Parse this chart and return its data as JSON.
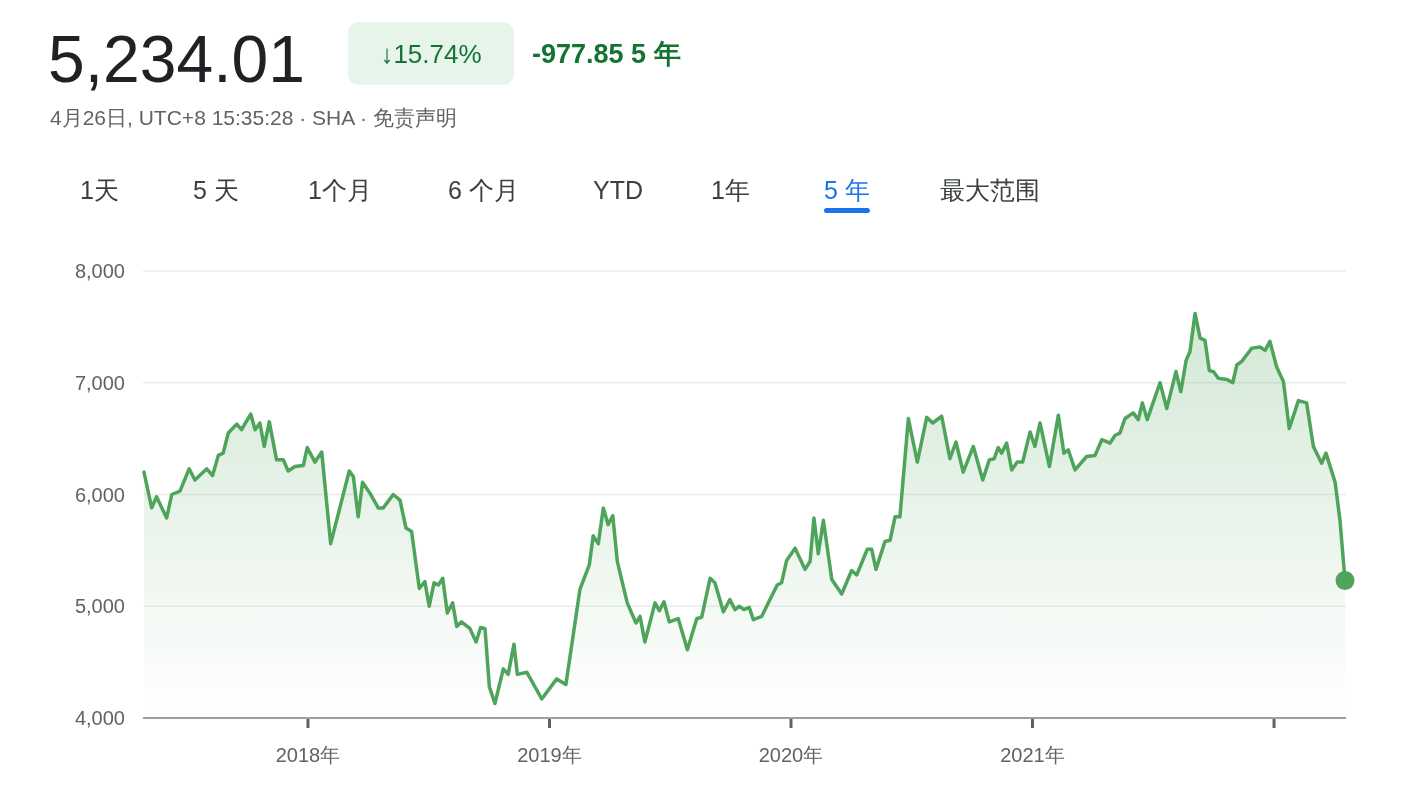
{
  "chart_data": {
    "type": "area",
    "title": "5,234.01",
    "subtitle": "4月26日, UTC+8 15:35:28 · SHA · 免责声明",
    "annotations": [
      "↓15.74%",
      "-977.85 5 年",
      "1天",
      "5 天",
      "1个月",
      "6 个月",
      "YTD",
      "1年",
      "5 年",
      "最大范围"
    ],
    "xlim": [
      2017.317,
      2022.298
    ],
    "xticks": [
      {
        "value": 2018,
        "label": "2018年"
      },
      {
        "value": 2019,
        "label": "2019年"
      },
      {
        "value": 2020,
        "label": "2020年"
      },
      {
        "value": 2021,
        "label": "2021年"
      },
      {
        "value": 2022,
        "label": null
      }
    ],
    "ylim": [
      4000,
      8000
    ],
    "yticks": [
      {
        "value": 4000,
        "label": "4,000"
      },
      {
        "value": 5000,
        "label": "5,000"
      },
      {
        "value": 6000,
        "label": "6,000"
      },
      {
        "value": 7000,
        "label": "7,000"
      },
      {
        "value": 8000,
        "label": "8,000"
      }
    ],
    "grid": "y",
    "series": [
      {
        "color": "#4ea45a",
        "x": [
          2017.321,
          2017.353,
          2017.373,
          2017.415,
          2017.436,
          2017.47,
          2017.508,
          2017.532,
          2017.581,
          2017.605,
          2017.629,
          2017.649,
          2017.67,
          2017.705,
          2017.725,
          2017.763,
          2017.781,
          2017.801,
          2017.819,
          2017.84,
          2017.87,
          2017.898,
          2017.918,
          2017.946,
          2017.981,
          2017.997,
          2018.029,
          2018.057,
          2018.094,
          2018.171,
          2018.188,
          2018.208,
          2018.226,
          2018.257,
          2018.291,
          2018.312,
          2018.353,
          2018.381,
          2018.406,
          2018.429,
          2018.461,
          2018.484,
          2018.502,
          2018.522,
          2018.54,
          2018.558,
          2018.577,
          2018.599,
          2018.616,
          2018.636,
          2018.671,
          2018.696,
          2018.715,
          2018.733,
          2018.751,
          2018.774,
          2018.809,
          2018.829,
          2018.853,
          2018.867,
          2018.906,
          2018.968,
          2019.03,
          2019.068,
          2019.126,
          2019.165,
          2019.181,
          2019.202,
          2019.223,
          2019.243,
          2019.262,
          2019.281,
          2019.322,
          2019.358,
          2019.375,
          2019.395,
          2019.437,
          2019.455,
          2019.474,
          2019.496,
          2019.533,
          2019.571,
          2019.61,
          2019.63,
          2019.665,
          2019.685,
          2019.72,
          2019.747,
          2019.768,
          2019.786,
          2019.805,
          2019.827,
          2019.844,
          2019.879,
          2019.913,
          2019.943,
          2019.961,
          2019.982,
          2020.017,
          2020.058,
          2020.079,
          2020.095,
          2020.113,
          2020.134,
          2020.169,
          2020.21,
          2020.251,
          2020.272,
          2020.316,
          2020.334,
          2020.352,
          2020.389,
          2020.41,
          2020.431,
          2020.451,
          2020.486,
          2020.523,
          2020.562,
          2020.587,
          2020.624,
          2020.658,
          2020.683,
          2020.713,
          2020.755,
          2020.794,
          2020.821,
          2020.841,
          2020.858,
          2020.872,
          2020.893,
          2020.914,
          2020.937,
          2020.959,
          2020.99,
          2021.01,
          2021.031,
          2021.07,
          2021.107,
          2021.13,
          2021.148,
          2021.176,
          2021.224,
          2021.259,
          2021.287,
          2021.321,
          2021.342,
          2021.362,
          2021.383,
          2021.417,
          2021.438,
          2021.455,
          2021.475,
          2021.528,
          2021.556,
          2021.594,
          2021.614,
          2021.636,
          2021.652,
          2021.673,
          2021.694,
          2021.714,
          2021.732,
          2021.749,
          2021.769,
          2021.804,
          2021.829,
          2021.846,
          2021.866,
          2021.908,
          2021.942,
          2021.963,
          2021.983,
          2022.011,
          2022.039,
          2022.063,
          2022.101,
          2022.135,
          2022.163,
          2022.197,
          2022.215,
          2022.253,
          2022.273,
          2022.294
        ],
        "values": [
          6200,
          5880,
          5980,
          5790,
          6000,
          6030,
          6230,
          6130,
          6230,
          6170,
          6350,
          6370,
          6550,
          6630,
          6580,
          6720,
          6580,
          6640,
          6430,
          6650,
          6310,
          6310,
          6210,
          6250,
          6260,
          6420,
          6290,
          6380,
          5560,
          6210,
          6160,
          5800,
          6110,
          6010,
          5880,
          5880,
          6000,
          5950,
          5700,
          5670,
          5160,
          5220,
          5000,
          5210,
          5190,
          5250,
          4940,
          5030,
          4820,
          4860,
          4800,
          4680,
          4810,
          4800,
          4280,
          4130,
          4440,
          4390,
          4660,
          4390,
          4410,
          4170,
          4350,
          4300,
          5150,
          5370,
          5630,
          5560,
          5880,
          5730,
          5810,
          5400,
          5030,
          4850,
          4910,
          4680,
          5030,
          4960,
          5040,
          4860,
          4890,
          4610,
          4890,
          4900,
          5250,
          5210,
          4950,
          5060,
          4970,
          5000,
          4970,
          4990,
          4880,
          4910,
          5060,
          5190,
          5210,
          5410,
          5520,
          5330,
          5400,
          5790,
          5470,
          5770,
          5240,
          5110,
          5320,
          5280,
          5510,
          5510,
          5330,
          5580,
          5590,
          5800,
          5800,
          6680,
          6290,
          6690,
          6640,
          6700,
          6320,
          6470,
          6200,
          6430,
          6130,
          6310,
          6320,
          6420,
          6370,
          6460,
          6220,
          6290,
          6290,
          6560,
          6430,
          6640,
          6250,
          6710,
          6370,
          6400,
          6220,
          6340,
          6350,
          6490,
          6460,
          6530,
          6550,
          6680,
          6730,
          6670,
          6820,
          6670,
          7000,
          6770,
          7100,
          6920,
          7200,
          7280,
          7620,
          7400,
          7380,
          7110,
          7100,
          7040,
          7030,
          7000,
          7160,
          7190,
          7310,
          7320,
          7290,
          7370,
          7140,
          7010,
          6590,
          6840,
          6820,
          6430,
          6280,
          6370,
          6110,
          5770,
          5230
        ]
      },
      {
        "type": "scatter",
        "color": "#4ea45a",
        "x": [
          2022.294
        ],
        "values": [
          5230
        ]
      }
    ]
  }
}
